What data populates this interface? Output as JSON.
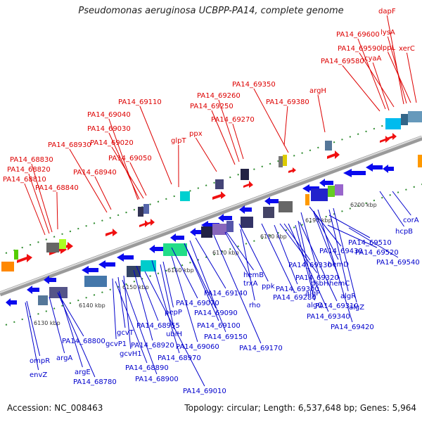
{
  "title": "Pseudomonas aeruginosa UCBPP-PA14, complete genome",
  "footer": {
    "accession": "Accession: NC_008463",
    "summary": "Topology: circular; Length: 6,537,648 bp; Genes: 5,964"
  },
  "colors": {
    "top_label": "#dd0000",
    "bottom_label": "#0000cc",
    "backbone": "#8c8c8c",
    "tick": "#2e8b2e"
  },
  "kbp_ticks": [
    "6130 kbp",
    "6140 kbp",
    "6150 kbp",
    "6160 kbp",
    "6170 kbp",
    "6180 kbp",
    "6190 kbp",
    "6200 kbp"
  ],
  "top_labels": [
    "dapF",
    "lysA",
    "PA14_69600",
    "lppL",
    "PA14_69590",
    "xerC",
    "cyaA",
    "PA14_69580",
    "PA14_69350",
    "argH",
    "PA14_69380",
    "PA14_69260",
    "PA14_69250",
    "PA14_69270",
    "PA14_69110",
    "PA14_69040",
    "PA14_69030",
    "PA14_69020",
    "PA14_69050",
    "glpT",
    "ppx",
    "PA14_68930",
    "PA14_68940",
    "PA14_68830",
    "PA14_68820",
    "PA14_68810",
    "PA14_68840"
  ],
  "bottom_labels": [
    "corA",
    "hcpB",
    "PA14_69510",
    "PA14_69520",
    "PA14_69540",
    "PA14_69430",
    "hemD",
    "PA14_69330",
    "dsbH",
    "hemC",
    "PA14_69320",
    "algR",
    "PA14_69300",
    "algP",
    "algZ",
    "PA14_69280",
    "algQ",
    "PA14_69310",
    "PA14_69340",
    "PA14_69420",
    "hemB",
    "trxA",
    "ppk",
    "rho",
    "PA14_69140",
    "PA14_69090",
    "PA14_69070",
    "PA14_69100",
    "PA14_69150",
    "PA14_69170",
    "pepP",
    "ubiH",
    "PA14_68955",
    "PA14_69060",
    "PA14_68970",
    "gcvT",
    "gcvP1",
    "gcvH1",
    "PA14_68920",
    "PA14_68890",
    "PA14_68900",
    "PA14_69010",
    "PA14_68800",
    "PA14_68780",
    "argA",
    "argE",
    "ompR",
    "envZ"
  ]
}
